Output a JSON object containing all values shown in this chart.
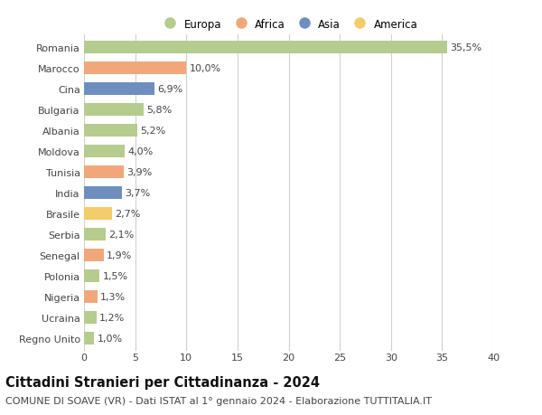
{
  "countries": [
    "Romania",
    "Marocco",
    "Cina",
    "Bulgaria",
    "Albania",
    "Moldova",
    "Tunisia",
    "India",
    "Brasile",
    "Serbia",
    "Senegal",
    "Polonia",
    "Nigeria",
    "Ucraina",
    "Regno Unito"
  ],
  "values": [
    35.5,
    10.0,
    6.9,
    5.8,
    5.2,
    4.0,
    3.9,
    3.7,
    2.7,
    2.1,
    1.9,
    1.5,
    1.3,
    1.2,
    1.0
  ],
  "labels": [
    "35,5%",
    "10,0%",
    "6,9%",
    "5,8%",
    "5,2%",
    "4,0%",
    "3,9%",
    "3,7%",
    "2,7%",
    "2,1%",
    "1,9%",
    "1,5%",
    "1,3%",
    "1,2%",
    "1,0%"
  ],
  "continents": [
    "Europa",
    "Africa",
    "Asia",
    "Europa",
    "Europa",
    "Europa",
    "Africa",
    "Asia",
    "America",
    "Europa",
    "Africa",
    "Europa",
    "Africa",
    "Europa",
    "Europa"
  ],
  "colors": {
    "Europa": "#b5cc8e",
    "Africa": "#f0a87a",
    "Asia": "#6e8fbe",
    "America": "#f5cc6a"
  },
  "title": "Cittadini Stranieri per Cittadinanza - 2024",
  "subtitle": "COMUNE DI SOAVE (VR) - Dati ISTAT al 1° gennaio 2024 - Elaborazione TUTTITALIA.IT",
  "xlim": [
    0,
    40
  ],
  "xticks": [
    0,
    5,
    10,
    15,
    20,
    25,
    30,
    35,
    40
  ],
  "background_color": "#ffffff",
  "grid_color": "#d0d0d0",
  "bar_height": 0.62,
  "title_fontsize": 10.5,
  "subtitle_fontsize": 8,
  "tick_fontsize": 8,
  "label_fontsize": 8,
  "legend_fontsize": 8.5
}
